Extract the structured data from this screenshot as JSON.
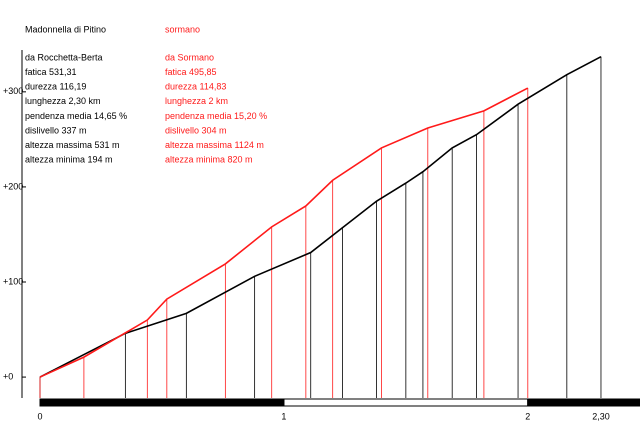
{
  "chart_data": {
    "type": "line",
    "series": [
      {
        "name": "Madonnella di Pitino",
        "color": "#000000",
        "info": [
          "da Rocchetta-Berta",
          "fatica 531,31",
          "durezza 116,19",
          "lunghezza 2,30 km",
          "pendenza media 14,65 %",
          "dislivello 337 m",
          "altezza massima 531 m",
          "altezza minima 194 m"
        ],
        "x": [
          0,
          0.35,
          0.6,
          0.88,
          1.11,
          1.24,
          1.38,
          1.5,
          1.57,
          1.69,
          1.79,
          1.96,
          2.16,
          2.3
        ],
        "values": [
          0,
          46,
          67,
          106,
          131,
          157,
          185,
          204,
          216,
          241,
          255,
          287,
          318,
          337
        ]
      },
      {
        "name": "sormano",
        "color": "#ff1a1a",
        "info": [
          "da Sormano",
          "fatica 495,85",
          "durezza 114,83",
          "lunghezza 2 km",
          "pendenza media 15,20 %",
          "dislivello 304 m",
          "altezza massima 1124 m",
          "altezza minima 820 m"
        ],
        "x": [
          0,
          0.18,
          0.44,
          0.52,
          0.76,
          0.95,
          1.09,
          1.2,
          1.4,
          1.59,
          1.82,
          2.0
        ],
        "values": [
          0,
          21,
          60,
          82,
          119,
          158,
          180,
          207,
          241,
          262,
          280,
          304
        ]
      }
    ],
    "xlim": [
      0,
      2.46
    ],
    "xticks": [
      0,
      1,
      2,
      {
        "value": 2.3,
        "label": "2,30"
      }
    ],
    "ylim": [
      -22,
      344
    ],
    "yticks": [
      {
        "value": 0,
        "label": "+0"
      },
      {
        "value": 100,
        "label": "+100"
      },
      {
        "value": 200,
        "label": "+200"
      },
      {
        "value": 300,
        "label": "+300"
      }
    ],
    "drop_lines": true
  }
}
